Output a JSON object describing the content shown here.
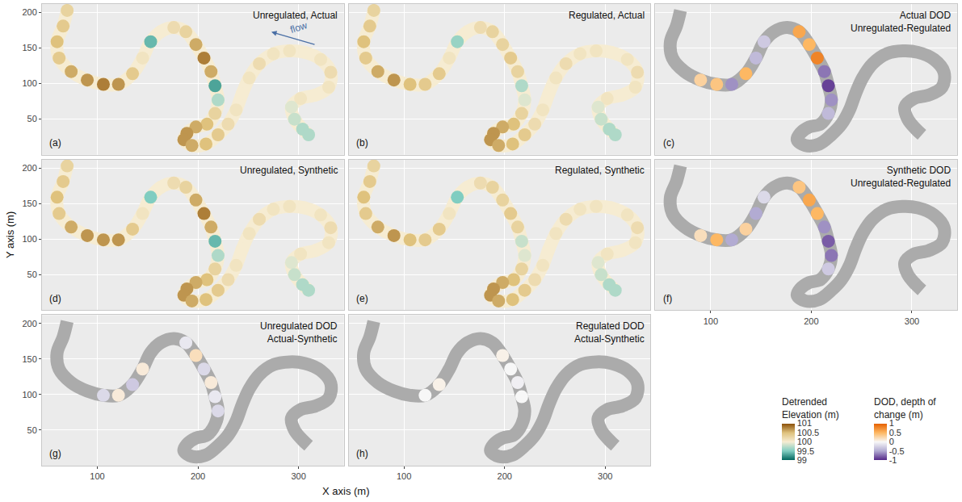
{
  "chart_data": {
    "type": "map_panels",
    "x_title": "X axis (m)",
    "y_title": "Y axis (m)",
    "xlim": [
      45,
      345
    ],
    "ylim": [
      0,
      212
    ],
    "xticks": [
      100,
      200,
      300
    ],
    "yticks": [
      50,
      100,
      150,
      200
    ],
    "grid": true,
    "channel": {
      "x": [
        70,
        66,
        60,
        62,
        74,
        90,
        106,
        121,
        135,
        145,
        153,
        163,
        176,
        188,
        198,
        206,
        213,
        217,
        220,
        217,
        209,
        198,
        189,
        186,
        194,
        208,
        220,
        230,
        238,
        244,
        251,
        261,
        275,
        291,
        306,
        322,
        332,
        330,
        317,
        302,
        293,
        296,
        304,
        310
      ],
      "y": [
        203,
        181,
        159,
        136,
        117,
        105,
        99,
        99,
        114,
        136,
        159,
        173,
        179,
        173,
        155,
        136,
        117,
        97,
        77,
        58,
        43,
        39,
        30,
        21,
        13,
        15,
        28,
        43,
        63,
        86,
        108,
        128,
        142,
        146,
        144,
        134,
        116,
        95,
        84,
        79,
        67,
        50,
        36,
        28
      ]
    },
    "colorbars": {
      "elevation": {
        "title": "Detrended Elevation (m)",
        "range": [
          99,
          101
        ],
        "ticks": [
          99,
          99.5,
          100,
          100.5,
          101
        ],
        "colors": [
          "#01665e",
          "#80cdc1",
          "#f6ecd2",
          "#dfc27d",
          "#8c510a"
        ]
      },
      "dod": {
        "title": "DOD, depth of change (m)",
        "range": [
          -1,
          1
        ],
        "ticks": [
          -1,
          -0.5,
          0,
          0.5,
          1
        ],
        "colors": [
          "#542788",
          "#b2abd2",
          "#f7f7f7",
          "#fdb863",
          "#e66101"
        ]
      }
    },
    "panels": [
      {
        "label": "(a)",
        "title": "Unregulated, Actual",
        "type": "elevation",
        "tick_labels": "y",
        "annotation": {
          "text": "flow"
        },
        "values": [
          100.3,
          100.4,
          100.5,
          100.4,
          100.6,
          100.7,
          100.8,
          100.7,
          100.4,
          100.1,
          99.4,
          100.0,
          100.2,
          100.3,
          100.6,
          100.8,
          100.6,
          99.3,
          99.7,
          100.3,
          100.5,
          100.6,
          100.7,
          100.7,
          100.6,
          100.5,
          100.4,
          100.2,
          100.1,
          100.0,
          100.1,
          100.2,
          100.1,
          100.1,
          100.0,
          100.1,
          100.2,
          100.1,
          100.0,
          100.1,
          99.9,
          99.8,
          99.7,
          99.7
        ]
      },
      {
        "label": "(b)",
        "title": "Regulated, Actual",
        "type": "elevation",
        "tick_labels": false,
        "values": [
          100.3,
          100.4,
          100.5,
          100.4,
          100.6,
          100.7,
          100.5,
          100.4,
          100.4,
          100.1,
          99.6,
          100.0,
          100.2,
          100.3,
          100.3,
          100.4,
          100.3,
          99.7,
          99.9,
          100.3,
          100.5,
          100.6,
          100.7,
          100.7,
          100.6,
          100.5,
          100.4,
          100.2,
          100.1,
          100.0,
          100.1,
          100.2,
          100.1,
          100.1,
          100.0,
          100.1,
          100.2,
          100.1,
          100.0,
          100.1,
          99.9,
          99.8,
          99.7,
          99.7
        ]
      },
      {
        "label": "(c)",
        "title": "Actual DOD Unregulated-Regulated",
        "type": "dod",
        "tick_labels": false,
        "values": [
          null,
          null,
          null,
          null,
          null,
          0.3,
          0.4,
          -0.6,
          0.5,
          -0.4,
          -0.3,
          null,
          null,
          0.6,
          0.5,
          0.8,
          -0.7,
          -0.9,
          -0.6,
          -0.4,
          null,
          null,
          null,
          null,
          null,
          null,
          null,
          null,
          null,
          null,
          null,
          null,
          null,
          null,
          null,
          null,
          null,
          null,
          null,
          null,
          null,
          null,
          null,
          null
        ]
      },
      {
        "label": "(d)",
        "title": "Unregulated, Synthetic",
        "type": "elevation",
        "tick_labels": "y",
        "values": [
          100.3,
          100.4,
          100.5,
          100.4,
          100.6,
          100.7,
          100.7,
          100.7,
          100.4,
          100.1,
          99.5,
          100.0,
          100.2,
          100.3,
          100.6,
          100.8,
          100.6,
          99.4,
          99.7,
          100.3,
          100.5,
          100.6,
          100.7,
          100.7,
          100.6,
          100.5,
          100.4,
          100.2,
          100.1,
          100.0,
          100.1,
          100.2,
          100.1,
          100.1,
          100.0,
          100.1,
          100.2,
          100.1,
          100.0,
          100.1,
          99.9,
          99.8,
          99.7,
          99.7
        ]
      },
      {
        "label": "(e)",
        "title": "Regulated, Synthetic",
        "type": "elevation",
        "tick_labels": false,
        "values": [
          100.3,
          100.4,
          100.5,
          100.4,
          100.6,
          100.7,
          100.5,
          100.4,
          100.4,
          100.1,
          99.5,
          100.0,
          100.2,
          100.3,
          100.3,
          100.4,
          100.3,
          99.8,
          99.9,
          100.3,
          100.5,
          100.6,
          100.7,
          100.7,
          100.6,
          100.5,
          100.4,
          100.2,
          100.1,
          100.0,
          100.1,
          100.2,
          100.1,
          100.1,
          100.0,
          100.1,
          100.2,
          100.1,
          100.0,
          100.1,
          99.9,
          99.8,
          99.7,
          99.7
        ]
      },
      {
        "label": "(f)",
        "title": "Synthetic DOD Unregulated-Regulated",
        "type": "dod",
        "tick_labels": "x",
        "values": [
          null,
          null,
          null,
          null,
          null,
          0.2,
          0.5,
          -0.5,
          0.3,
          -0.5,
          -0.2,
          null,
          null,
          0.4,
          0.6,
          0.5,
          -0.6,
          -0.8,
          -0.7,
          -0.3,
          null,
          null,
          null,
          null,
          null,
          null,
          null,
          null,
          null,
          null,
          null,
          null,
          null,
          null,
          null,
          null,
          null,
          null,
          null,
          null,
          null,
          null,
          null,
          null
        ]
      },
      {
        "label": "(g)",
        "title": "Unregulated DOD Actual-Synthetic",
        "type": "dod",
        "tick_labels": true,
        "values": [
          null,
          null,
          null,
          null,
          null,
          null,
          -0.2,
          0.1,
          -0.3,
          0.1,
          null,
          null,
          null,
          -0.1,
          0.2,
          -0.2,
          0.1,
          -0.1,
          -0.2,
          null,
          null,
          null,
          null,
          null,
          null,
          null,
          null,
          null,
          null,
          null,
          null,
          null,
          null,
          null,
          null,
          null,
          null,
          null,
          null,
          null,
          null,
          null,
          null,
          null
        ]
      },
      {
        "label": "(h)",
        "title": "Regulated DOD Actual-Synthetic",
        "type": "dod",
        "tick_labels": "x",
        "values": [
          null,
          null,
          null,
          null,
          null,
          null,
          null,
          0.0,
          0.05,
          null,
          null,
          null,
          null,
          null,
          0.05,
          0.0,
          -0.05,
          0.0,
          null,
          null,
          null,
          null,
          null,
          null,
          null,
          null,
          null,
          null,
          null,
          null,
          null,
          null,
          null,
          null,
          null,
          null,
          null,
          null,
          null,
          null,
          null,
          null,
          null,
          null
        ]
      }
    ]
  }
}
